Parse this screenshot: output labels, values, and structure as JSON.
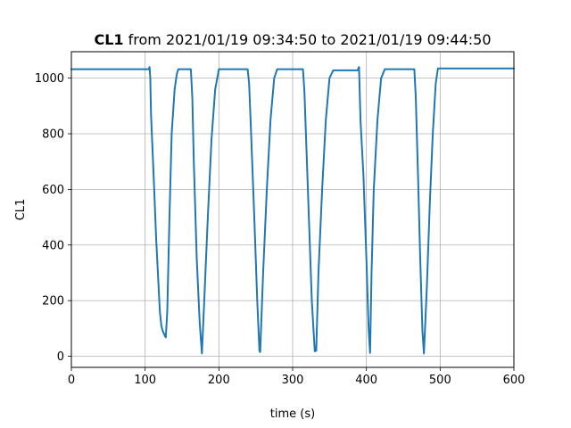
{
  "chart_data": {
    "type": "line",
    "title_bold": "CL1",
    "title_rest": " from 2021/01/19 09:34:50 to 2021/01/19 09:44:50",
    "xlabel": "time (s)",
    "ylabel": "CL1",
    "xlim": [
      0,
      600
    ],
    "ylim": [
      -40,
      1095
    ],
    "xticks": [
      0,
      100,
      200,
      300,
      400,
      500,
      600
    ],
    "yticks": [
      0,
      200,
      400,
      600,
      800,
      1000
    ],
    "grid": true,
    "colors": {
      "series": "#1f77b4",
      "grid": "#b0b0b0"
    },
    "series": [
      {
        "x": [
          0,
          105,
          106,
          107,
          108,
          112,
          115,
          120,
          122,
          124,
          126,
          127,
          128,
          130,
          133,
          136,
          140,
          143,
          145,
          162,
          164,
          166,
          170,
          174,
          177,
          180,
          185,
          190,
          195,
          200,
          239,
          241,
          244,
          248,
          252,
          255,
          256,
          260,
          265,
          270,
          275,
          279,
          281,
          314,
          316,
          318,
          322,
          326,
          330,
          332,
          335,
          340,
          345,
          350,
          355,
          388,
          390,
          392,
          396,
          400,
          403,
          405,
          407,
          410,
          415,
          420,
          425,
          428,
          465,
          467,
          470,
          473,
          476,
          478,
          482,
          486,
          490,
          494,
          497,
          600
        ],
        "y": [
          1032,
          1032,
          1040,
          1000,
          870,
          620,
          420,
          160,
          110,
          90,
          78,
          72,
          68,
          160,
          500,
          800,
          960,
          1015,
          1032,
          1032,
          930,
          700,
          350,
          120,
          10,
          190,
          500,
          780,
          960,
          1032,
          1032,
          980,
          780,
          500,
          200,
          20,
          15,
          300,
          600,
          850,
          1000,
          1032,
          1032,
          1032,
          950,
          800,
          500,
          200,
          18,
          20,
          300,
          600,
          850,
          1000,
          1028,
          1028,
          1040,
          850,
          650,
          350,
          100,
          12,
          300,
          600,
          850,
          1000,
          1032,
          1032,
          1032,
          930,
          650,
          350,
          90,
          10,
          250,
          550,
          800,
          980,
          1035,
          1035
        ]
      }
    ]
  }
}
